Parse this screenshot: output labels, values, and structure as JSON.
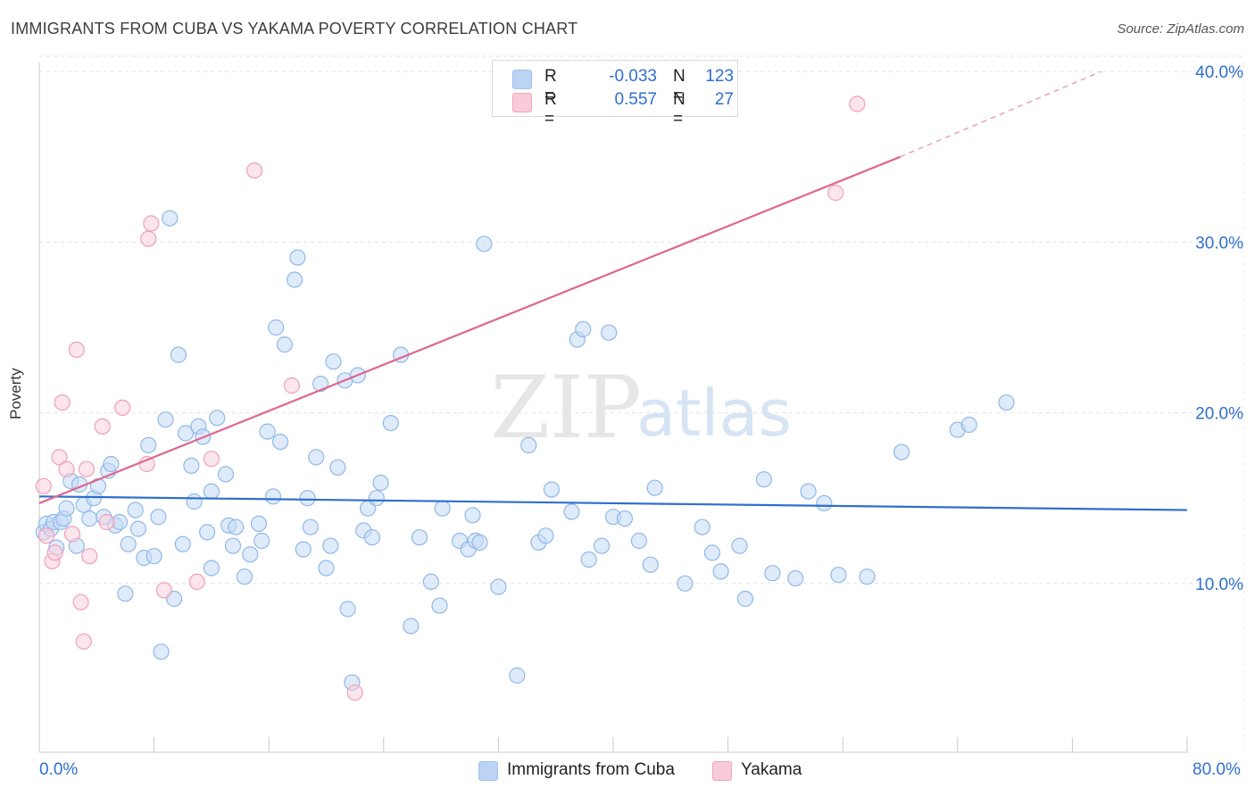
{
  "title": "IMMIGRANTS FROM CUBA VS YAKAMA POVERTY CORRELATION CHART",
  "source": "Source: ZipAtlas.com",
  "watermark": {
    "zip": "ZIP",
    "atlas": "atlas"
  },
  "legend": {
    "rows": [
      {
        "r_label": "R =",
        "r_value": "-0.033",
        "n_label": "N =",
        "n_value": "123",
        "color": "#9dc1ee",
        "fill": "#bcd4f4"
      },
      {
        "r_label": "R =",
        "r_value": "0.557",
        "n_label": "N =",
        "n_value": "27",
        "color": "#f2a6be",
        "fill": "#f9cbd9"
      }
    ]
  },
  "bottom_legend": [
    {
      "label": "Immigrants from Cuba",
      "color": "#9dc1ee",
      "fill": "#bcd4f4"
    },
    {
      "label": "Yakama",
      "color": "#f2a6be",
      "fill": "#f9cbd9"
    }
  ],
  "x_tick_labels": {
    "left": "0.0%",
    "right": "80.0%"
  },
  "chart_data": {
    "type": "scatter",
    "title": "IMMIGRANTS FROM CUBA VS YAKAMA POVERTY CORRELATION CHART",
    "xlabel": "",
    "ylabel": "Poverty",
    "xlim": [
      0,
      80
    ],
    "ylim": [
      0,
      42
    ],
    "y_ticks": [
      10,
      20,
      30,
      40
    ],
    "y_tick_labels": [
      "10.0%",
      "20.0%",
      "30.0%",
      "40.0%"
    ],
    "grid": true,
    "legend_position": "top-center",
    "colors": {
      "cuba_stroke": "#8fb8ea",
      "cuba_fill": "#c4daf5",
      "cuba_line": "#2d6fcb",
      "yakama_stroke": "#f0a0b8",
      "yakama_fill": "#f9d0dc",
      "yakama_line": "#e0668f"
    },
    "series": [
      {
        "name": "Immigrants from Cuba",
        "trend": {
          "x": [
            0,
            80
          ],
          "y": [
            15.1,
            14.3
          ]
        },
        "points": [
          [
            0.3,
            13.0
          ],
          [
            0.5,
            13.5
          ],
          [
            0.8,
            13.2
          ],
          [
            1.0,
            13.6
          ],
          [
            1.2,
            12.1
          ],
          [
            1.5,
            13.6
          ],
          [
            1.7,
            13.8
          ],
          [
            1.9,
            14.4
          ],
          [
            2.2,
            16.0
          ],
          [
            2.6,
            12.2
          ],
          [
            2.8,
            15.8
          ],
          [
            3.1,
            14.6
          ],
          [
            3.5,
            13.8
          ],
          [
            3.8,
            15.0
          ],
          [
            4.1,
            15.7
          ],
          [
            4.5,
            13.9
          ],
          [
            4.8,
            16.6
          ],
          [
            5.0,
            17.0
          ],
          [
            5.3,
            13.4
          ],
          [
            5.6,
            13.6
          ],
          [
            6.0,
            9.4
          ],
          [
            6.2,
            12.3
          ],
          [
            6.7,
            14.3
          ],
          [
            6.9,
            13.2
          ],
          [
            7.3,
            11.5
          ],
          [
            7.6,
            18.1
          ],
          [
            8.0,
            11.6
          ],
          [
            8.3,
            13.9
          ],
          [
            8.5,
            6.0
          ],
          [
            8.8,
            19.6
          ],
          [
            9.1,
            31.4
          ],
          [
            9.4,
            9.1
          ],
          [
            9.7,
            23.4
          ],
          [
            10.0,
            12.3
          ],
          [
            10.2,
            18.8
          ],
          [
            10.6,
            16.9
          ],
          [
            10.8,
            14.8
          ],
          [
            11.1,
            19.2
          ],
          [
            11.4,
            18.6
          ],
          [
            11.7,
            13.0
          ],
          [
            12.0,
            15.4
          ],
          [
            12.0,
            10.9
          ],
          [
            12.4,
            19.7
          ],
          [
            13.0,
            16.4
          ],
          [
            13.2,
            13.4
          ],
          [
            13.5,
            12.2
          ],
          [
            13.7,
            13.3
          ],
          [
            14.3,
            10.4
          ],
          [
            14.7,
            11.7
          ],
          [
            15.3,
            13.5
          ],
          [
            15.5,
            12.5
          ],
          [
            15.9,
            18.9
          ],
          [
            16.3,
            15.1
          ],
          [
            16.5,
            25.0
          ],
          [
            16.8,
            18.3
          ],
          [
            17.1,
            24.0
          ],
          [
            17.8,
            27.8
          ],
          [
            18.0,
            29.1
          ],
          [
            18.4,
            12.0
          ],
          [
            18.7,
            15.0
          ],
          [
            18.9,
            13.3
          ],
          [
            19.3,
            17.4
          ],
          [
            19.6,
            21.7
          ],
          [
            20.0,
            10.9
          ],
          [
            20.3,
            12.2
          ],
          [
            20.5,
            23.0
          ],
          [
            20.8,
            16.8
          ],
          [
            21.3,
            21.9
          ],
          [
            21.5,
            8.5
          ],
          [
            21.8,
            4.2
          ],
          [
            22.2,
            22.2
          ],
          [
            22.6,
            13.1
          ],
          [
            22.9,
            14.4
          ],
          [
            23.2,
            12.7
          ],
          [
            23.5,
            15.0
          ],
          [
            23.8,
            15.9
          ],
          [
            24.5,
            19.4
          ],
          [
            25.2,
            23.4
          ],
          [
            25.9,
            7.5
          ],
          [
            26.5,
            12.7
          ],
          [
            27.3,
            10.1
          ],
          [
            27.9,
            8.7
          ],
          [
            28.1,
            14.4
          ],
          [
            29.3,
            12.5
          ],
          [
            29.9,
            12.0
          ],
          [
            30.2,
            14.0
          ],
          [
            30.4,
            12.5
          ],
          [
            30.7,
            12.4
          ],
          [
            31.0,
            29.9
          ],
          [
            32.0,
            9.8
          ],
          [
            33.3,
            4.6
          ],
          [
            34.1,
            18.1
          ],
          [
            34.8,
            12.4
          ],
          [
            35.3,
            12.8
          ],
          [
            35.7,
            15.5
          ],
          [
            37.1,
            14.2
          ],
          [
            37.5,
            24.3
          ],
          [
            37.9,
            24.9
          ],
          [
            38.3,
            11.4
          ],
          [
            39.2,
            12.2
          ],
          [
            39.7,
            24.7
          ],
          [
            40.0,
            13.9
          ],
          [
            40.8,
            13.8
          ],
          [
            41.8,
            12.5
          ],
          [
            42.6,
            11.1
          ],
          [
            42.9,
            15.6
          ],
          [
            45.0,
            10.0
          ],
          [
            46.2,
            13.3
          ],
          [
            46.9,
            11.8
          ],
          [
            47.5,
            10.7
          ],
          [
            48.8,
            12.2
          ],
          [
            49.2,
            9.1
          ],
          [
            50.5,
            16.1
          ],
          [
            51.1,
            10.6
          ],
          [
            52.7,
            10.3
          ],
          [
            53.6,
            15.4
          ],
          [
            54.7,
            14.7
          ],
          [
            55.7,
            10.5
          ],
          [
            57.7,
            10.4
          ],
          [
            60.1,
            17.7
          ],
          [
            64.0,
            19.0
          ],
          [
            64.8,
            19.3
          ],
          [
            67.4,
            20.6
          ]
        ]
      },
      {
        "name": "Yakama",
        "trend": {
          "x": [
            0,
            60
          ],
          "y": [
            14.7,
            35.0
          ]
        },
        "trend_extension": {
          "x": [
            60,
            74
          ],
          "y": [
            35.0,
            40.0
          ]
        },
        "points": [
          [
            0.3,
            15.7
          ],
          [
            0.5,
            12.8
          ],
          [
            0.9,
            11.3
          ],
          [
            1.1,
            11.8
          ],
          [
            1.4,
            17.4
          ],
          [
            1.6,
            20.6
          ],
          [
            1.9,
            16.7
          ],
          [
            2.3,
            12.9
          ],
          [
            2.6,
            23.7
          ],
          [
            2.9,
            8.9
          ],
          [
            3.1,
            6.6
          ],
          [
            3.3,
            16.7
          ],
          [
            3.5,
            11.6
          ],
          [
            4.4,
            19.2
          ],
          [
            4.7,
            13.6
          ],
          [
            5.8,
            20.3
          ],
          [
            7.5,
            17.0
          ],
          [
            7.6,
            30.2
          ],
          [
            7.8,
            31.1
          ],
          [
            8.7,
            9.6
          ],
          [
            11.0,
            10.1
          ],
          [
            12.0,
            17.3
          ],
          [
            15.0,
            34.2
          ],
          [
            17.6,
            21.6
          ],
          [
            22.0,
            3.6
          ],
          [
            55.5,
            32.9
          ],
          [
            57.0,
            38.1
          ]
        ]
      }
    ]
  }
}
